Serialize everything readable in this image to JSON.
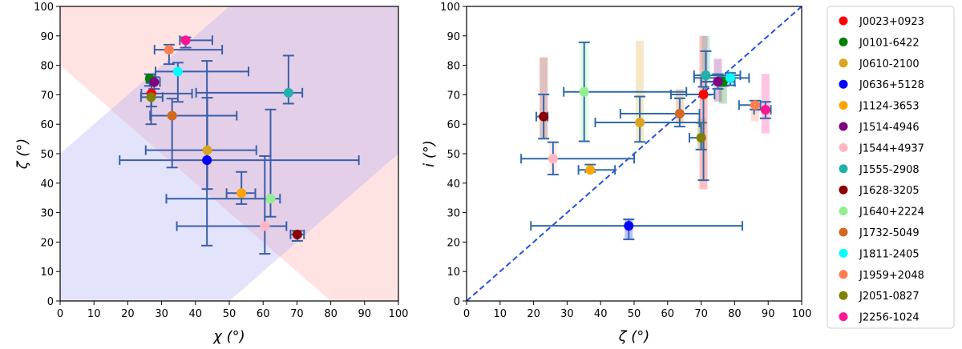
{
  "chart_data": [
    {
      "type": "scatter",
      "xlabel": "χ (°)",
      "ylabel": "ζ (°)",
      "xlim": [
        0,
        100
      ],
      "ylim": [
        0,
        100
      ],
      "ticks": [
        0,
        10,
        20,
        30,
        40,
        50,
        60,
        70,
        80,
        90,
        100
      ],
      "grid": false,
      "regions": [
        {
          "description_color": "#fde0e0",
          "rule": "zeta + chi > 80"
        },
        {
          "description_color": "#e0e0fc",
          "rule": "|zeta - chi| < 50"
        }
      ],
      "errorbar_color": "#3a5fa8",
      "points": [
        {
          "name": "J0023+0923",
          "x": 27.0,
          "y": 70.4,
          "xerr": [
            24,
            39
          ],
          "yerr": [
            66,
            74
          ]
        },
        {
          "name": "J0101-6422",
          "x": 26.5,
          "y": 75.5,
          "xerr": [
            25.5,
            28
          ],
          "yerr": [
            73,
            77
          ]
        },
        {
          "name": "J0610-2100",
          "x": 43.5,
          "y": 51.2,
          "xerr": [
            25.3,
            58
          ],
          "yerr": [
            38,
            69
          ]
        },
        {
          "name": "J0636+5128",
          "x": 43.4,
          "y": 47.8,
          "xerr": [
            17.6,
            88.3
          ],
          "yerr": [
            18.8,
            81.5
          ]
        },
        {
          "name": "J1124-3653",
          "x": 53.6,
          "y": 36.6,
          "xerr": [
            49.2,
            57.7
          ],
          "yerr": [
            32.9,
            43.8
          ]
        },
        {
          "name": "J1514-4946",
          "x": 27.8,
          "y": 74.3,
          "xerr": [
            26.5,
            29.5
          ],
          "yerr": [
            72,
            76
          ]
        },
        {
          "name": "J1544+4937",
          "x": 60.5,
          "y": 25.4,
          "xerr": [
            34.5,
            66.9
          ],
          "yerr": [
            16.0,
            49.2
          ]
        },
        {
          "name": "J1555-2908",
          "x": 67.5,
          "y": 70.7,
          "xerr": [
            40.2,
            71.6
          ],
          "yerr": [
            67,
            83.3
          ]
        },
        {
          "name": "J1628-3205",
          "x": 70.1,
          "y": 22.6,
          "xerr": [
            68.1,
            72.1
          ],
          "yerr": [
            20.4,
            23.8
          ]
        },
        {
          "name": "J1640+2224",
          "x": 62.2,
          "y": 34.7,
          "xerr": [
            31.4,
            65
          ],
          "yerr": [
            28.6,
            65
          ]
        },
        {
          "name": "J1732-5049",
          "x": 33.1,
          "y": 62.9,
          "xerr": [
            26.6,
            52.2
          ],
          "yerr": [
            45.3,
            68.7
          ]
        },
        {
          "name": "J1811-2405",
          "x": 34.8,
          "y": 77.9,
          "xerr": [
            28.2,
            55.7
          ],
          "yerr": [
            67.6,
            80.9
          ]
        },
        {
          "name": "J1959+2048",
          "x": 32.2,
          "y": 85.3,
          "xerr": [
            27.9,
            47.9
          ],
          "yerr": [
            80.4,
            87
          ]
        },
        {
          "name": "J2051-0827",
          "x": 26.9,
          "y": 69.2,
          "xerr": [
            23.9,
            30.3
          ],
          "yerr": [
            60,
            70.5
          ]
        },
        {
          "name": "J2256-1024",
          "x": 37.1,
          "y": 88.5,
          "xerr": [
            35.4,
            45
          ],
          "yerr": [
            86,
            89.5
          ]
        }
      ]
    },
    {
      "type": "scatter",
      "xlabel": "ζ (°)",
      "ylabel": "i (°)",
      "xlim": [
        0,
        100
      ],
      "ylim": [
        0,
        100
      ],
      "ticks": [
        0,
        10,
        20,
        30,
        40,
        50,
        60,
        70,
        80,
        90,
        100
      ],
      "grid": false,
      "reference_line": {
        "from": [
          0,
          0
        ],
        "to": [
          100,
          100
        ],
        "style": "dashed",
        "color": "#2450e0"
      },
      "errorbar_color": "#2e6aab",
      "points": [
        {
          "name": "J0023+0923",
          "x": 70.7,
          "y": 70.1,
          "xerr": [
            61,
            74
          ],
          "yerr": [
            41,
            72.7
          ],
          "band": [
            37.9,
            90
          ]
        },
        {
          "name": "J0101-6422",
          "x": 76.5,
          "y": 74.4,
          "xerr": [
            70,
            80
          ],
          "yerr": [
            73,
            76
          ],
          "band": [
            67,
            75
          ]
        },
        {
          "name": "J0610-2100",
          "x": 51.7,
          "y": 60.6,
          "xerr": [
            38.4,
            69.5
          ],
          "yerr": [
            54,
            69.4
          ],
          "band": [
            54,
            88.3
          ]
        },
        {
          "name": "J0636+5128",
          "x": 48.4,
          "y": 25.5,
          "xerr": [
            19.2,
            82.3
          ],
          "yerr": [
            20.9,
            27.7
          ],
          "band": [
            21,
            28
          ]
        },
        {
          "name": "J1124-3653",
          "x": 36.9,
          "y": 44.5,
          "xerr": [
            33.4,
            44.3
          ],
          "yerr": [
            43.8,
            46.3
          ],
          "band": [
            43.5,
            45.5
          ]
        },
        {
          "name": "J1514-4946",
          "x": 75.0,
          "y": 74.5,
          "xerr": [
            70,
            80
          ],
          "yerr": [
            72,
            77
          ],
          "band": [
            67.7,
            82.2
          ]
        },
        {
          "name": "J1544+4937",
          "x": 25.8,
          "y": 48.3,
          "xerr": [
            16.3,
            50
          ],
          "yerr": [
            42.9,
            53.9
          ],
          "band": [
            43,
            54
          ]
        },
        {
          "name": "J1555-2908",
          "x": 71.4,
          "y": 76.6,
          "xerr": [
            67.9,
            81.7
          ],
          "yerr": [
            70,
            84.8
          ],
          "band": [
            75,
            90
          ]
        },
        {
          "name": "J1628-3205",
          "x": 23.0,
          "y": 62.6,
          "xerr": [
            20.8,
            24.2
          ],
          "yerr": [
            55.1,
            70.1
          ],
          "band": [
            55,
            82.7
          ]
        },
        {
          "name": "J1640+2224",
          "x": 35.1,
          "y": 71.0,
          "xerr": [
            29,
            65.6
          ],
          "yerr": [
            54.2,
            87.8
          ],
          "band": [
            54,
            88
          ]
        },
        {
          "name": "J1732-5049",
          "x": 63.6,
          "y": 63.6,
          "xerr": [
            45.9,
            69.5
          ],
          "yerr": [
            59.2,
            68.8
          ],
          "band": [
            60,
            72
          ]
        },
        {
          "name": "J1811-2405",
          "x": 78.7,
          "y": 75.7,
          "xerr": [
            67.9,
            84.3
          ],
          "yerr": [
            73.2,
            77.4
          ],
          "band": [
            73,
            78
          ]
        },
        {
          "name": "J1959+2048",
          "x": 86.1,
          "y": 66.5,
          "xerr": [
            81.3,
            87.7
          ],
          "yerr": [
            65,
            68
          ],
          "band": [
            61,
            68
          ]
        },
        {
          "name": "J2051-0827",
          "x": 70.0,
          "y": 55.4,
          "xerr": [
            66.5,
            70.5
          ],
          "yerr": [
            51.4,
            60.5
          ],
          "band": [
            51,
            62
          ]
        },
        {
          "name": "J2256-1024",
          "x": 89.2,
          "y": 64.9,
          "xerr": [
            85.8,
            90.8
          ],
          "yerr": [
            62,
            67.6
          ],
          "band": [
            56.9,
            77.1
          ]
        }
      ]
    }
  ],
  "legend": {
    "placement": "right",
    "entries": [
      {
        "label": "J0023+0923",
        "color": "#ff0000"
      },
      {
        "label": "J0101-6422",
        "color": "#008000"
      },
      {
        "label": "J0610-2100",
        "color": "#daa520"
      },
      {
        "label": "J0636+5128",
        "color": "#0000ff"
      },
      {
        "label": "J1124-3653",
        "color": "#ffa500"
      },
      {
        "label": "J1514-4946",
        "color": "#800080"
      },
      {
        "label": "J1544+4937",
        "color": "#ffb6c1"
      },
      {
        "label": "J1555-2908",
        "color": "#20b2aa"
      },
      {
        "label": "J1628-3205",
        "color": "#8b0000"
      },
      {
        "label": "J1640+2224",
        "color": "#90ee90"
      },
      {
        "label": "J1732-5049",
        "color": "#d2691e"
      },
      {
        "label": "J1811-2405",
        "color": "#00ffff"
      },
      {
        "label": "J1959+2048",
        "color": "#ff7f50"
      },
      {
        "label": "J2051-0827",
        "color": "#808000"
      },
      {
        "label": "J2256-1024",
        "color": "#ff1493"
      }
    ]
  }
}
